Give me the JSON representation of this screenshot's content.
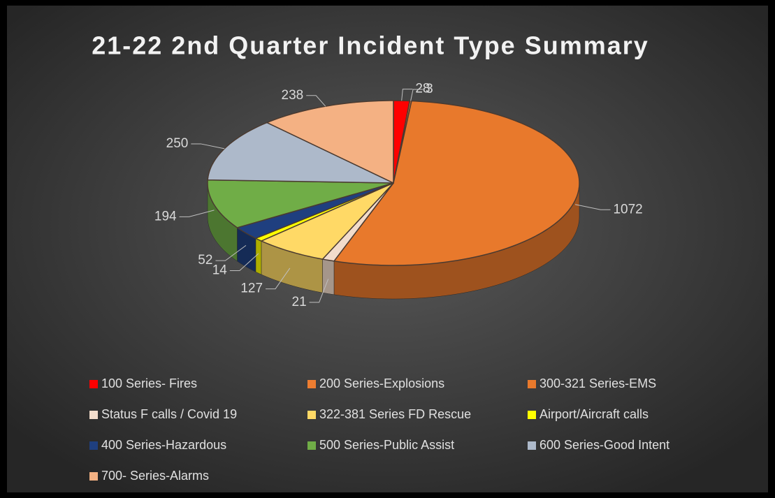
{
  "chart_data": {
    "type": "pie3d",
    "title": "21-22 2nd Quarter Incident Type Summary",
    "categories": [
      "100 Series- Fires",
      "200 Series-Explosions",
      "300-321 Series-EMS",
      "Status F calls / Covid 19",
      "322-381 Series FD Rescue",
      "Airport/Aircraft calls",
      "400 Series-Hazardous",
      "500 Series-Public Assist",
      "600 Series-Good Intent",
      "700- Series-Alarms"
    ],
    "values": [
      28,
      3,
      1072,
      21,
      127,
      14,
      52,
      194,
      250,
      238
    ],
    "colors": [
      "#ff0000",
      "#ed7d31",
      "#e8792c",
      "#f2dccb",
      "#ffd966",
      "#ffff00",
      "#1f3f7f",
      "#70ad47",
      "#adb9ca",
      "#f4b183"
    ],
    "legend": "bottom"
  }
}
